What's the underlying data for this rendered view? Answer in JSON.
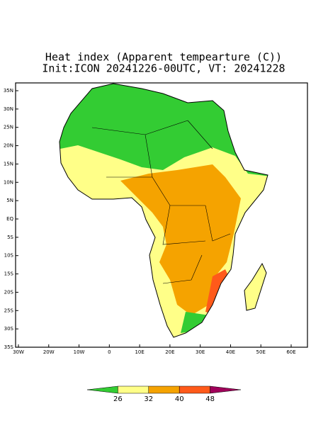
{
  "title": [
    "Heat index (Apparent tempearture (C))",
    "Init:ICON 20241226-00UTC, VT: 20241228"
  ],
  "map": {
    "lat_labels": [
      "35N",
      "30N",
      "25N",
      "20N",
      "15N",
      "10N",
      "5N",
      "EQ",
      "5S",
      "10S",
      "15S",
      "20S",
      "25S",
      "30S",
      "35S"
    ],
    "lon_labels": [
      "30W",
      "20W",
      "10W",
      "0",
      "10E",
      "20E",
      "30E",
      "40E",
      "50E",
      "60E"
    ]
  },
  "colorbar": {
    "labels": [
      26,
      32,
      40,
      48
    ],
    "colors": [
      "#33cc33",
      "#ffff88",
      "#f5a300",
      "#ff5a1a",
      "#a0005a"
    ]
  }
}
